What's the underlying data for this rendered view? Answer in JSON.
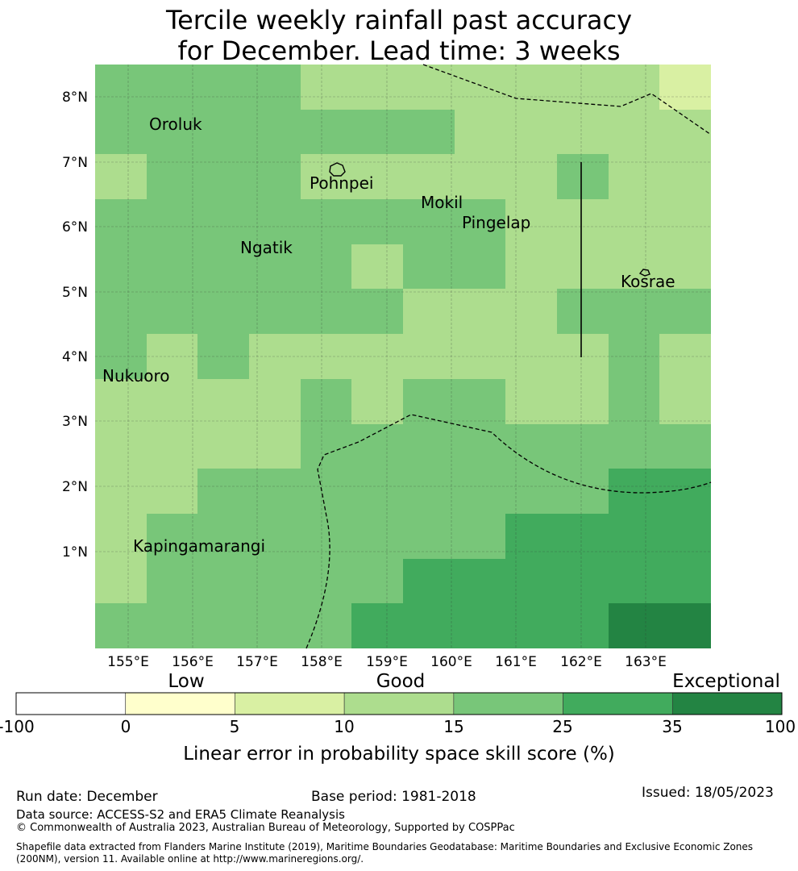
{
  "title": {
    "line1": "Tercile weekly rainfall past accuracy",
    "line2": "for December. Lead time: 3 weeks"
  },
  "map": {
    "lat_labels": [
      "8°N",
      "7°N",
      "6°N",
      "5°N",
      "4°N",
      "3°N",
      "2°N",
      "1°N"
    ],
    "lon_labels": [
      "155°E",
      "156°E",
      "157°E",
      "158°E",
      "159°E",
      "160°E",
      "161°E",
      "162°E",
      "163°E"
    ],
    "places": [
      "Oroluk",
      "Pohnpei",
      "Mokil",
      "Pingelap",
      "Ngatik",
      "Kosrae",
      "Nukuoro",
      "Kapingamarangi"
    ],
    "grid_colors": [
      "#78c679",
      "#78c679",
      "#78c679",
      "#78c679",
      "#addd8e",
      "#addd8e",
      "#addd8e",
      "#addd8e",
      "#addd8e",
      "#addd8e",
      "#addd8e",
      "#d9f0a3",
      "#78c679",
      "#78c679",
      "#78c679",
      "#78c679",
      "#78c679",
      "#78c679",
      "#78c679",
      "#addd8e",
      "#addd8e",
      "#addd8e",
      "#addd8e",
      "#addd8e",
      "#addd8e",
      "#78c679",
      "#78c679",
      "#78c679",
      "#addd8e",
      "#addd8e",
      "#addd8e",
      "#addd8e",
      "#addd8e",
      "#78c679",
      "#addd8e",
      "#addd8e",
      "#78c679",
      "#78c679",
      "#78c679",
      "#78c679",
      "#78c679",
      "#78c679",
      "#78c679",
      "#78c679",
      "#addd8e",
      "#addd8e",
      "#addd8e",
      "#addd8e",
      "#78c679",
      "#78c679",
      "#78c679",
      "#78c679",
      "#78c679",
      "#addd8e",
      "#78c679",
      "#78c679",
      "#addd8e",
      "#addd8e",
      "#addd8e",
      "#addd8e",
      "#78c679",
      "#78c679",
      "#78c679",
      "#78c679",
      "#78c679",
      "#78c679",
      "#addd8e",
      "#addd8e",
      "#addd8e",
      "#78c679",
      "#78c679",
      "#78c679",
      "#78c679",
      "#addd8e",
      "#78c679",
      "#addd8e",
      "#addd8e",
      "#addd8e",
      "#addd8e",
      "#addd8e",
      "#addd8e",
      "#addd8e",
      "#78c679",
      "#addd8e",
      "#addd8e",
      "#addd8e",
      "#addd8e",
      "#addd8e",
      "#78c679",
      "#addd8e",
      "#78c679",
      "#78c679",
      "#addd8e",
      "#addd8e",
      "#78c679",
      "#addd8e",
      "#addd8e",
      "#addd8e",
      "#addd8e",
      "#addd8e",
      "#78c679",
      "#78c679",
      "#78c679",
      "#78c679",
      "#78c679",
      "#78c679",
      "#78c679",
      "#78c679",
      "#addd8e",
      "#addd8e",
      "#78c679",
      "#78c679",
      "#78c679",
      "#78c679",
      "#78c679",
      "#78c679",
      "#78c679",
      "#78c679",
      "#41ab5d",
      "#41ab5d",
      "#addd8e",
      "#78c679",
      "#78c679",
      "#78c679",
      "#78c679",
      "#78c679",
      "#78c679",
      "#78c679",
      "#41ab5d",
      "#41ab5d",
      "#41ab5d",
      "#41ab5d",
      "#addd8e",
      "#78c679",
      "#78c679",
      "#78c679",
      "#78c679",
      "#78c679",
      "#41ab5d",
      "#41ab5d",
      "#41ab5d",
      "#41ab5d",
      "#41ab5d",
      "#41ab5d",
      "#78c679",
      "#78c679",
      "#78c679",
      "#78c679",
      "#78c679",
      "#41ab5d",
      "#41ab5d",
      "#41ab5d",
      "#41ab5d",
      "#41ab5d",
      "#238443",
      "#238443"
    ]
  },
  "colorbar": {
    "categories": [
      "Low",
      "Good",
      "Exceptional"
    ],
    "ticks": [
      "-100",
      "0",
      "5",
      "10",
      "15",
      "25",
      "35",
      "100"
    ],
    "colors": [
      "#ffffff",
      "#ffffcc",
      "#d9f0a3",
      "#addd8e",
      "#78c679",
      "#41ab5d",
      "#238443"
    ],
    "label": "Linear error in probability space skill score (%)"
  },
  "footer": {
    "run_date": "Run date: December",
    "base_period": "Base period: 1981-2018",
    "issued": "Issued: 18/05/2023",
    "data_source": "Data source: ACCESS-S2 and ERA5 Climate Reanalysis",
    "copyright": "© Commonwealth of Australia 2023, Australian Bureau of Meteorology, Supported by COSPPac",
    "shapefile": "Shapefile data extracted from Flanders Marine Institute (2019), Maritime Boundaries Geodatabase: Maritime Boundaries and Exclusive Economic Zones (200NM), version 11. Available online at http://www.marineregions.org/."
  }
}
